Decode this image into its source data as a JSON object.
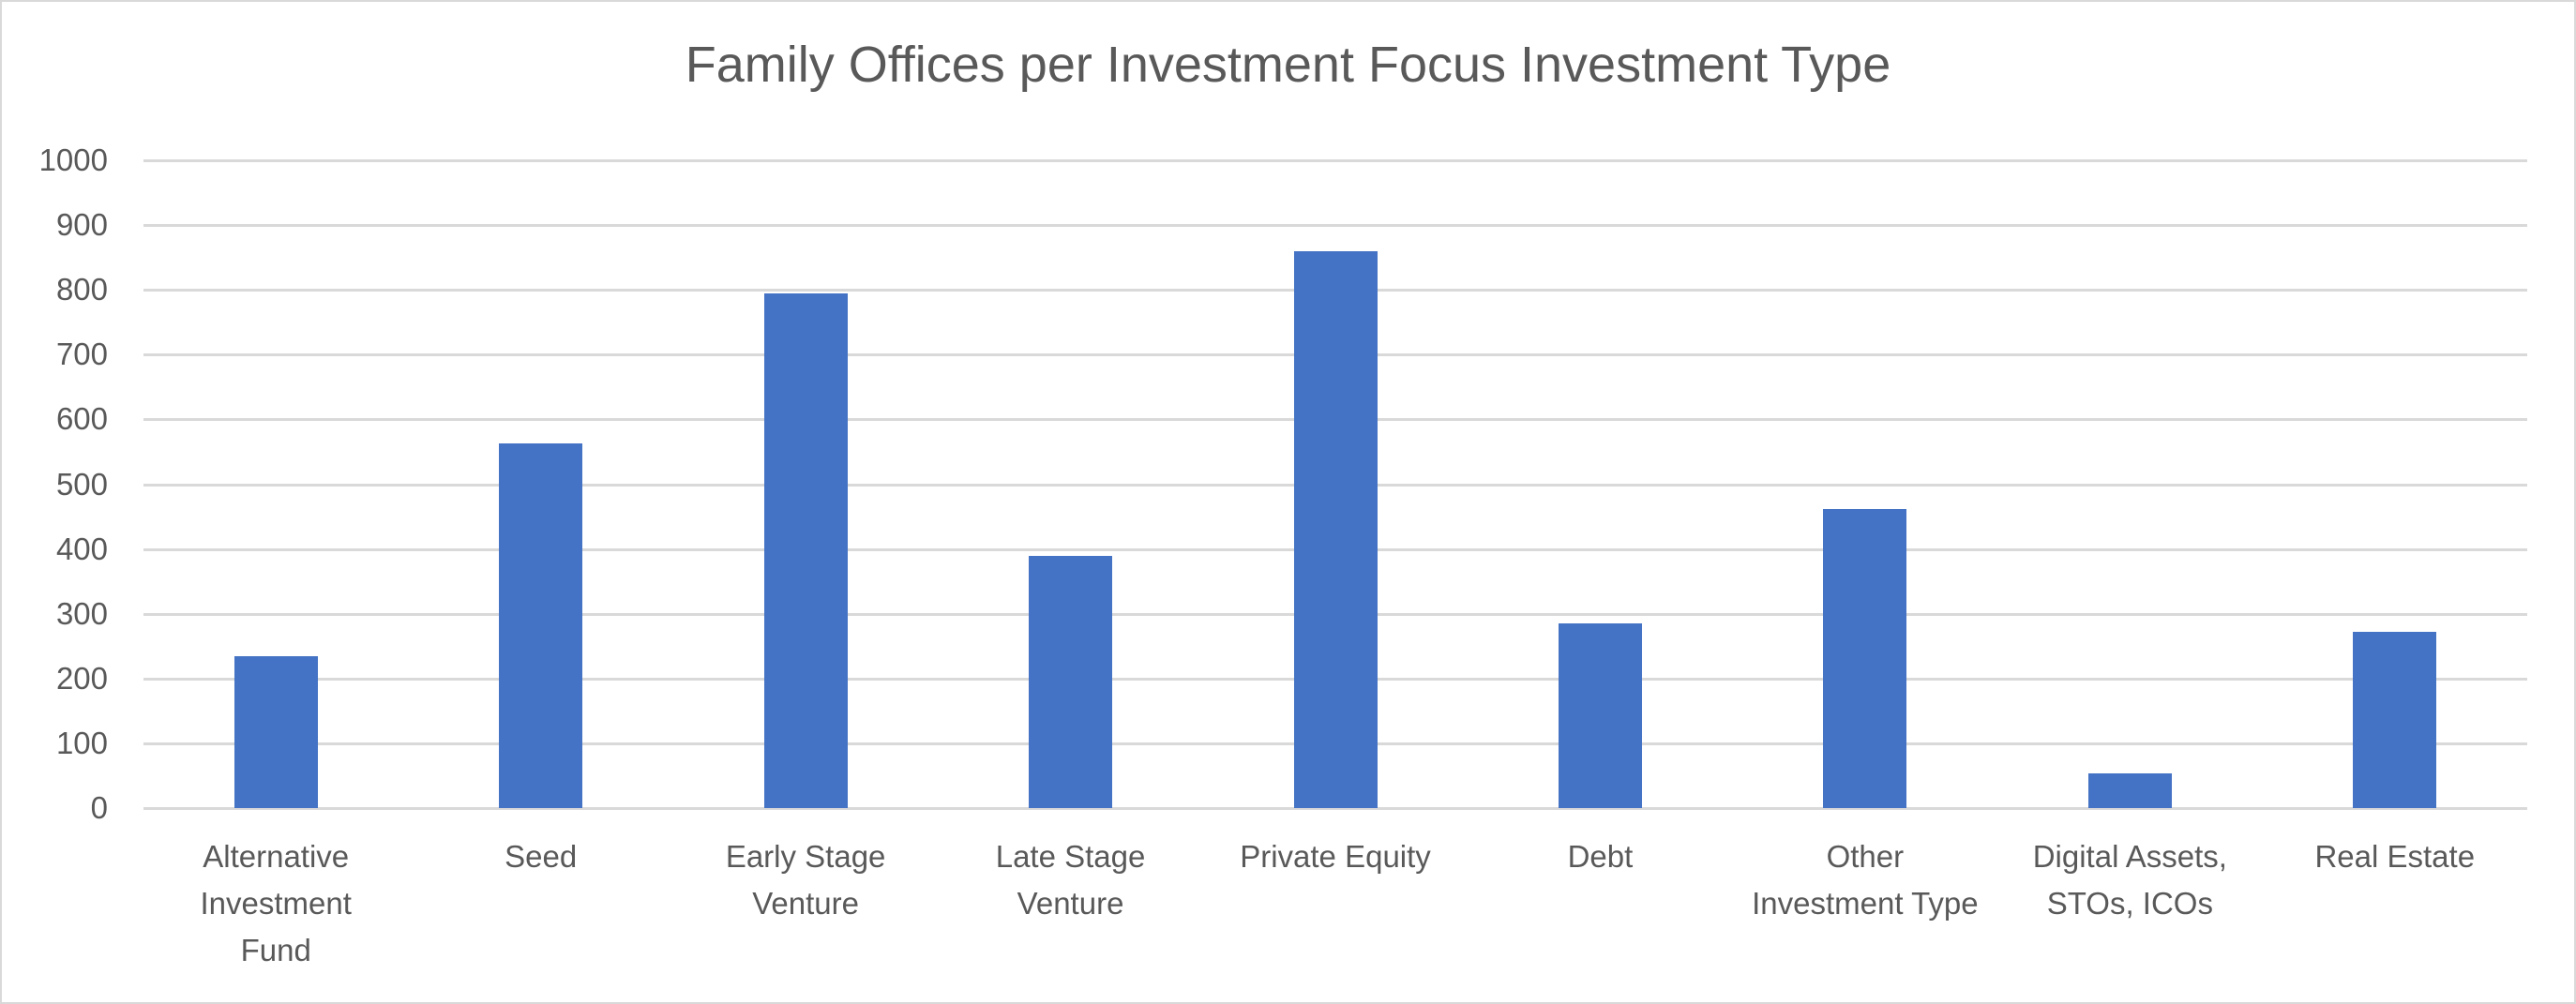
{
  "chart_data": {
    "type": "bar",
    "title": "Family Offices per Investment Focus Investment Type",
    "xlabel": "",
    "ylabel": "",
    "categories": [
      "Alternative Investment Fund",
      "Seed",
      "Early Stage Venture",
      "Late Stage Venture",
      "Private Equity",
      "Debt",
      "Other Investment Type",
      "Digital Assets, STOs, ICOs",
      "Real Estate"
    ],
    "category_display": [
      "Alternative\nInvestment\nFund",
      "Seed",
      "Early Stage\nVenture",
      "Late Stage\nVenture",
      "Private Equity",
      "Debt",
      "Other\nInvestment Type",
      "Digital Assets,\nSTOs, ICOs",
      "Real Estate"
    ],
    "values": [
      235,
      563,
      795,
      389,
      859,
      285,
      461,
      53,
      272
    ],
    "ylim": [
      0,
      1000
    ],
    "yticks": [
      "0",
      "100",
      "200",
      "300",
      "400",
      "500",
      "600",
      "700",
      "800",
      "900",
      "1000"
    ],
    "grid": true,
    "legend": null,
    "colors": {
      "bar": "#4472c4",
      "grid": "#d9d9d9",
      "text": "#595959",
      "border": "#d9d9d9"
    }
  }
}
